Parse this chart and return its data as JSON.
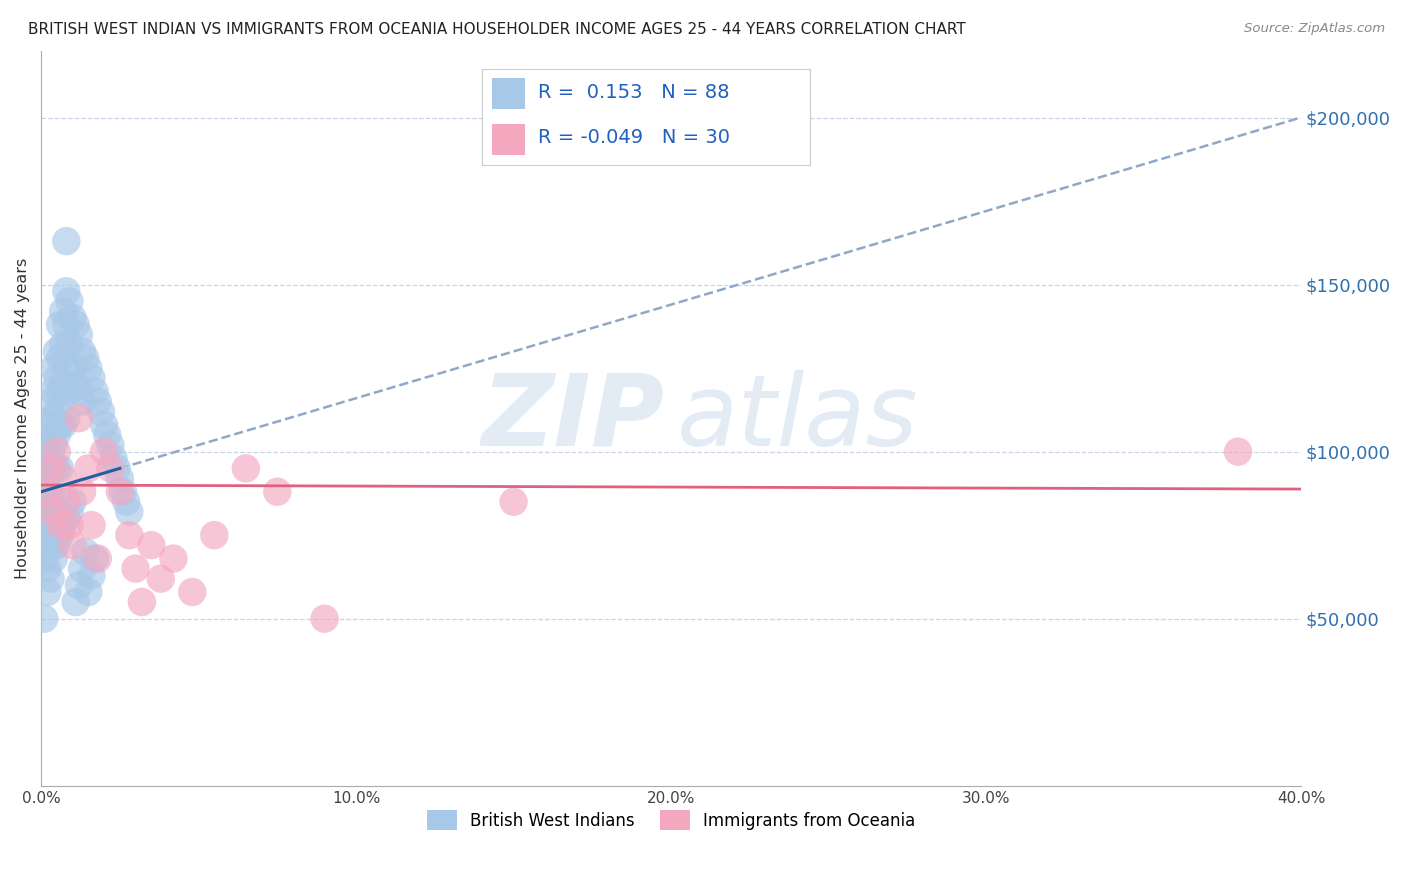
{
  "title": "BRITISH WEST INDIAN VS IMMIGRANTS FROM OCEANIA HOUSEHOLDER INCOME AGES 25 - 44 YEARS CORRELATION CHART",
  "source": "Source: ZipAtlas.com",
  "ylabel": "Householder Income Ages 25 - 44 years",
  "xmin": 0.0,
  "xmax": 0.4,
  "ymin": 0,
  "ymax": 220000,
  "blue_R": 0.153,
  "blue_N": 88,
  "pink_R": -0.049,
  "pink_N": 30,
  "blue_color": "#a8c8e8",
  "pink_color": "#f4a8c0",
  "blue_line_color": "#2060a0",
  "pink_line_color": "#e06080",
  "dashed_line_color": "#90a8c8",
  "legend_label_blue": "British West Indians",
  "legend_label_pink": "Immigrants from Oceania",
  "watermark_zip": "ZIP",
  "watermark_atlas": "atlas",
  "ytick_labels": [
    "$50,000",
    "$100,000",
    "$150,000",
    "$200,000"
  ],
  "ytick_values": [
    50000,
    100000,
    150000,
    200000
  ],
  "xtick_labels": [
    "0.0%",
    "10.0%",
    "20.0%",
    "30.0%",
    "40.0%"
  ],
  "xtick_values": [
    0.0,
    0.1,
    0.2,
    0.3,
    0.4
  ],
  "blue_x": [
    0.001,
    0.001,
    0.001,
    0.001,
    0.001,
    0.002,
    0.002,
    0.002,
    0.002,
    0.002,
    0.002,
    0.002,
    0.003,
    0.003,
    0.003,
    0.003,
    0.003,
    0.003,
    0.004,
    0.004,
    0.004,
    0.004,
    0.004,
    0.004,
    0.004,
    0.005,
    0.005,
    0.005,
    0.005,
    0.005,
    0.005,
    0.006,
    0.006,
    0.006,
    0.006,
    0.006,
    0.007,
    0.007,
    0.007,
    0.007,
    0.008,
    0.008,
    0.008,
    0.008,
    0.009,
    0.009,
    0.009,
    0.01,
    0.01,
    0.011,
    0.011,
    0.012,
    0.012,
    0.013,
    0.013,
    0.014,
    0.015,
    0.016,
    0.017,
    0.018,
    0.019,
    0.02,
    0.021,
    0.022,
    0.023,
    0.024,
    0.025,
    0.026,
    0.027,
    0.028,
    0.001,
    0.002,
    0.003,
    0.004,
    0.005,
    0.006,
    0.007,
    0.008,
    0.009,
    0.01,
    0.011,
    0.012,
    0.013,
    0.014,
    0.015,
    0.016,
    0.017,
    0.008
  ],
  "blue_y": [
    88000,
    95000,
    82000,
    75000,
    68000,
    105000,
    98000,
    92000,
    88000,
    80000,
    73000,
    65000,
    115000,
    108000,
    100000,
    95000,
    88000,
    78000,
    125000,
    118000,
    110000,
    102000,
    95000,
    85000,
    72000,
    130000,
    122000,
    112000,
    105000,
    95000,
    82000,
    138000,
    128000,
    118000,
    108000,
    95000,
    142000,
    132000,
    120000,
    108000,
    148000,
    138000,
    125000,
    110000,
    145000,
    132000,
    118000,
    140000,
    125000,
    138000,
    120000,
    135000,
    118000,
    130000,
    115000,
    128000,
    125000,
    122000,
    118000,
    115000,
    112000,
    108000,
    105000,
    102000,
    98000,
    95000,
    92000,
    88000,
    85000,
    82000,
    50000,
    58000,
    62000,
    68000,
    72000,
    75000,
    78000,
    80000,
    82000,
    85000,
    55000,
    60000,
    65000,
    70000,
    58000,
    63000,
    68000,
    163000
  ],
  "pink_x": [
    0.002,
    0.003,
    0.004,
    0.005,
    0.006,
    0.007,
    0.008,
    0.009,
    0.01,
    0.012,
    0.013,
    0.015,
    0.016,
    0.018,
    0.02,
    0.022,
    0.025,
    0.028,
    0.03,
    0.032,
    0.035,
    0.038,
    0.042,
    0.048,
    0.055,
    0.065,
    0.075,
    0.09,
    0.38,
    0.15
  ],
  "pink_y": [
    88000,
    95000,
    82000,
    100000,
    78000,
    92000,
    85000,
    78000,
    72000,
    110000,
    88000,
    95000,
    78000,
    68000,
    100000,
    95000,
    88000,
    75000,
    65000,
    55000,
    72000,
    62000,
    68000,
    58000,
    75000,
    95000,
    88000,
    50000,
    100000,
    85000
  ]
}
